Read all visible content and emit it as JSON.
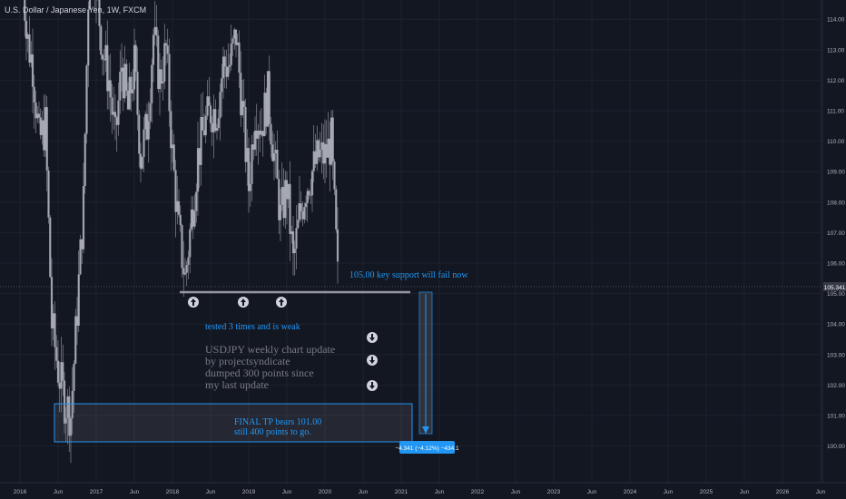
{
  "symbol_label": "U.S. Dollar / Japanese Yen, 1W, FXCM",
  "colors": {
    "background": "#131722",
    "grid": "#1e222d",
    "candle": "#b2b5be",
    "accent": "#2196f3",
    "axis_text": "#b2b5be",
    "annotation_gray": "#787b86",
    "price_tag": "#363a45"
  },
  "chart_data": {
    "type": "candlestick",
    "title": "U.S. Dollar / Japanese Yen, 1W, FXCM",
    "ylim": [
      99.4,
      114.8
    ],
    "xlim": [
      "2015-12",
      "2026-09"
    ],
    "y_ticks": [
      "100.00",
      "101.00",
      "102.00",
      "103.00",
      "104.00",
      "105.00",
      "106.00",
      "107.00",
      "108.00",
      "109.00",
      "110.00",
      "111.00",
      "112.00",
      "113.00",
      "114.00"
    ],
    "x_ticks": [
      "2016",
      "Jun",
      "2017",
      "Jun",
      "2018",
      "Jun",
      "2019",
      "Jun",
      "2020",
      "Jun",
      "2021",
      "Jun",
      "2022",
      "Jun",
      "2023",
      "Jun",
      "2024",
      "Jun",
      "2025",
      "Jun",
      "2026",
      "Jun"
    ],
    "current_price_label": "105.341",
    "current_price": 105.341,
    "grid": true,
    "key_support_level": 105.0,
    "target_level": 101.0,
    "weekly_closes_approx": [
      [
        "2016-01",
        118.0
      ],
      [
        "2016-02",
        113.5
      ],
      [
        "2016-03",
        112.5
      ],
      [
        "2016-04",
        110.0
      ],
      [
        "2016-05",
        110.5
      ],
      [
        "2016-06",
        104.0
      ],
      [
        "2016-07",
        102.5
      ],
      [
        "2016-08",
        101.5
      ],
      [
        "2016-09",
        101.0
      ],
      [
        "2016-10",
        104.5
      ],
      [
        "2016-11",
        108.0
      ],
      [
        "2016-12",
        117.0
      ],
      [
        "2017-01",
        115.0
      ],
      [
        "2017-02",
        113.0
      ],
      [
        "2017-03",
        112.0
      ],
      [
        "2017-04",
        110.0
      ],
      [
        "2017-05",
        112.5
      ],
      [
        "2017-06",
        111.0
      ],
      [
        "2017-07",
        112.5
      ],
      [
        "2017-08",
        109.5
      ],
      [
        "2017-09",
        110.5
      ],
      [
        "2017-10",
        113.5
      ],
      [
        "2017-11",
        112.0
      ],
      [
        "2017-12",
        113.0
      ],
      [
        "2018-01",
        109.5
      ],
      [
        "2018-02",
        107.0
      ],
      [
        "2018-03",
        105.5
      ],
      [
        "2018-04",
        107.5
      ],
      [
        "2018-05",
        109.5
      ],
      [
        "2018-06",
        110.5
      ],
      [
        "2018-07",
        111.0
      ],
      [
        "2018-08",
        111.0
      ],
      [
        "2018-09",
        112.5
      ],
      [
        "2018-10",
        112.5
      ],
      [
        "2018-11",
        113.5
      ],
      [
        "2018-12",
        111.0
      ],
      [
        "2019-01",
        108.5
      ],
      [
        "2019-02",
        111.0
      ],
      [
        "2019-03",
        110.5
      ],
      [
        "2019-04",
        111.5
      ],
      [
        "2019-05",
        109.5
      ],
      [
        "2019-06",
        107.5
      ],
      [
        "2019-07",
        108.5
      ],
      [
        "2019-08",
        106.0
      ],
      [
        "2019-09",
        107.5
      ],
      [
        "2019-10",
        108.5
      ],
      [
        "2019-11",
        109.0
      ],
      [
        "2019-12",
        109.5
      ],
      [
        "2020-01",
        109.5
      ],
      [
        "2020-02",
        110.0
      ],
      [
        "2020-03",
        105.5
      ]
    ]
  },
  "annotations": {
    "support_note": "105.00 key support will fail now",
    "tested_note": "tested 3 times and is weak",
    "update_lines": [
      "USDJPY weekly chart update",
      "by projectsyndicate",
      "dumped 300 points since",
      "my last update"
    ],
    "target_lines": [
      "FINAL TP bears 101.00",
      "still 400 points to go."
    ],
    "measure_label": "−4.341 (−4.12%) −434.1",
    "up_arrow_icon": "arrow-up-circle",
    "down_arrow_icon": "arrow-down-circle"
  }
}
